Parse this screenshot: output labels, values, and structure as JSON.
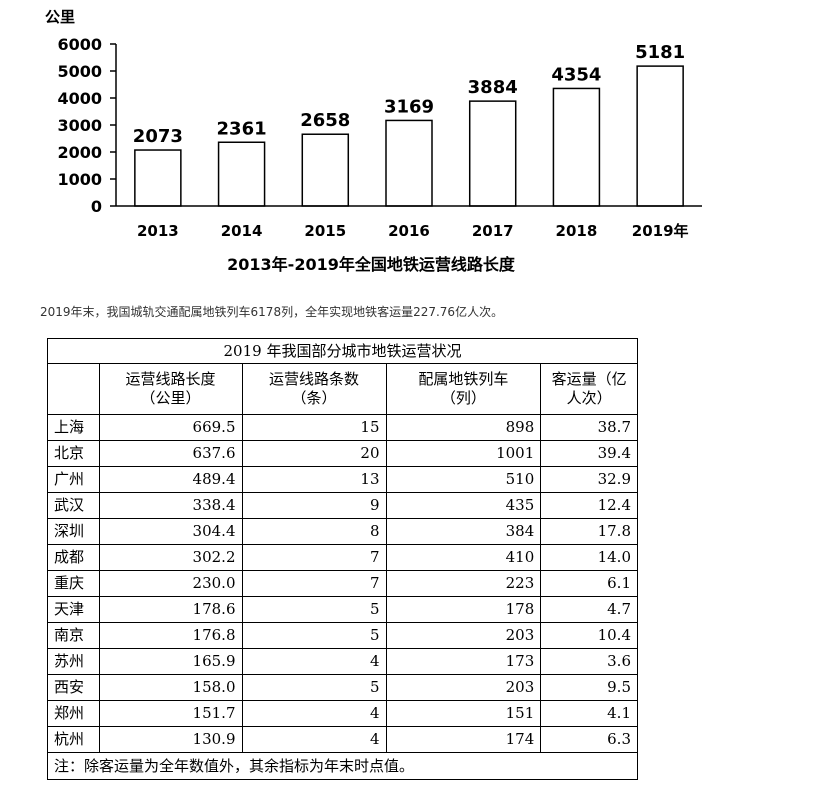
{
  "chart_data": {
    "type": "bar",
    "title": "2013年-2019年全国地铁运营线路长度",
    "ylabel": "公里",
    "xlabel": "",
    "categories": [
      "2013",
      "2014",
      "2015",
      "2016",
      "2017",
      "2018",
      "2019年"
    ],
    "values": [
      2073,
      2361,
      2658,
      3169,
      3884,
      4354,
      5181
    ],
    "ylim": [
      0,
      6000
    ],
    "yticks": [
      "0",
      "1000",
      "2000",
      "3000",
      "4000",
      "5000",
      "6000"
    ],
    "grid": false,
    "bar_fill": "#ffffff",
    "bar_stroke": "#000000"
  },
  "summary_text": "2019年末，我国城轨交通配属地铁列车6178列，全年实现地铁客运量227.76亿人次。",
  "table": {
    "title": "2019 年我国部分城市地铁运营状况",
    "headers": [
      {
        "line1": "运营线路长度",
        "line2": "（公里）"
      },
      {
        "line1": "运营线路条数",
        "line2": "（条）"
      },
      {
        "line1": "配属地铁列车",
        "line2": "（列）"
      },
      {
        "line1": "客运量（亿",
        "line2": "人次）"
      }
    ],
    "rows": [
      [
        "上海",
        "669.5",
        "15",
        "898",
        "38.7"
      ],
      [
        "北京",
        "637.6",
        "20",
        "1001",
        "39.4"
      ],
      [
        "广州",
        "489.4",
        "13",
        "510",
        "32.9"
      ],
      [
        "武汉",
        "338.4",
        "9",
        "435",
        "12.4"
      ],
      [
        "深圳",
        "304.4",
        "8",
        "384",
        "17.8"
      ],
      [
        "成都",
        "302.2",
        "7",
        "410",
        "14.0"
      ],
      [
        "重庆",
        "230.0",
        "7",
        "223",
        "6.1"
      ],
      [
        "天津",
        "178.6",
        "5",
        "178",
        "4.7"
      ],
      [
        "南京",
        "176.8",
        "5",
        "203",
        "10.4"
      ],
      [
        "苏州",
        "165.9",
        "4",
        "173",
        "3.6"
      ],
      [
        "西安",
        "158.0",
        "5",
        "203",
        "9.5"
      ],
      [
        "郑州",
        "151.7",
        "4",
        "151",
        "4.1"
      ],
      [
        "杭州",
        "130.9",
        "4",
        "174",
        "6.3"
      ]
    ],
    "footnote": "注：除客运量为全年数值外，其余指标为年末时点值。"
  }
}
